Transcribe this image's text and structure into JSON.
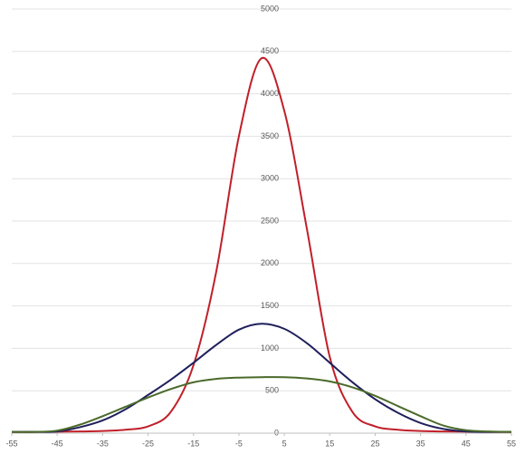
{
  "chart_data": {
    "type": "line",
    "x": [
      -55,
      -50,
      -45,
      -40,
      -35,
      -30,
      -25,
      -20,
      -15,
      -10,
      -5,
      0,
      5,
      10,
      15,
      20,
      25,
      30,
      35,
      40,
      45,
      50,
      55
    ],
    "series": [
      {
        "color": "#c0202a",
        "values": [
          15,
          15,
          18,
          20,
          25,
          40,
          80,
          250,
          800,
          1900,
          3500,
          4420,
          3800,
          2400,
          900,
          250,
          80,
          40,
          25,
          20,
          18,
          15,
          15
        ]
      },
      {
        "color": "#1f1f5c",
        "values": [
          15,
          15,
          20,
          70,
          150,
          280,
          450,
          630,
          830,
          1040,
          1220,
          1290,
          1230,
          1060,
          830,
          600,
          400,
          240,
          120,
          50,
          20,
          15,
          15
        ]
      },
      {
        "color": "#4a6a2a",
        "values": [
          15,
          15,
          30,
          100,
          200,
          310,
          420,
          520,
          600,
          640,
          655,
          660,
          660,
          645,
          610,
          540,
          440,
          320,
          200,
          90,
          35,
          20,
          15
        ]
      }
    ],
    "xlim": [
      -55,
      55
    ],
    "xticks": [
      -55,
      -45,
      -35,
      -25,
      -15,
      -5,
      5,
      15,
      25,
      35,
      45,
      55
    ],
    "ylim": [
      0,
      5000
    ],
    "yticks": [
      0,
      500,
      1000,
      1500,
      2000,
      2500,
      3000,
      3500,
      4000,
      4500,
      5000
    ],
    "grid": true
  }
}
